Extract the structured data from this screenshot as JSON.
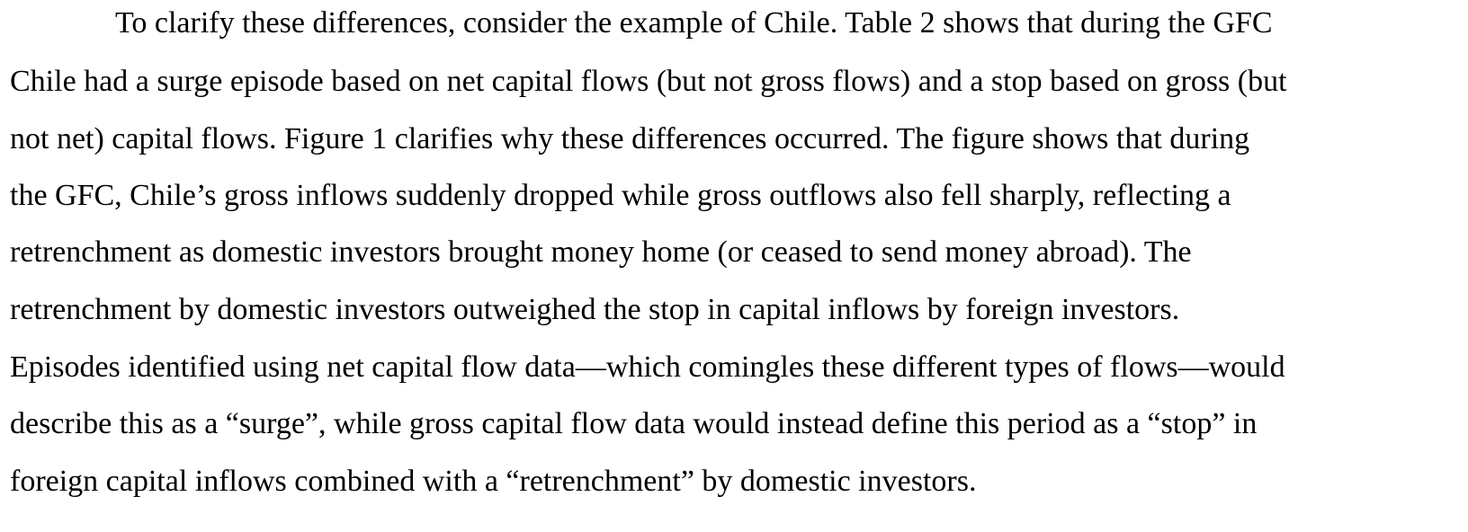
{
  "paragraph": {
    "lines": [
      "To clarify these differences, consider the example of Chile. Table 2 shows that during the GFC",
      "Chile had a surge episode based on net capital flows (but not gross flows) and a stop based on gross (but",
      "not net) capital flows. Figure 1 clarifies why these differences occurred. The figure shows that during",
      "the GFC, Chile’s gross inflows suddenly dropped while gross outflows also fell sharply, reflecting a",
      "retrenchment as domestic investors brought money home (or ceased to send money abroad). The",
      "retrenchment by domestic investors outweighed the stop in capital inflows by foreign investors.",
      "Episodes identified using net capital flow data—which comingles these different types of flows—would",
      "describe this as a “surge”, while gross capital flow data would instead define this period as a “stop” in",
      "foreign capital inflows combined with a “retrenchment” by domestic investors."
    ]
  }
}
